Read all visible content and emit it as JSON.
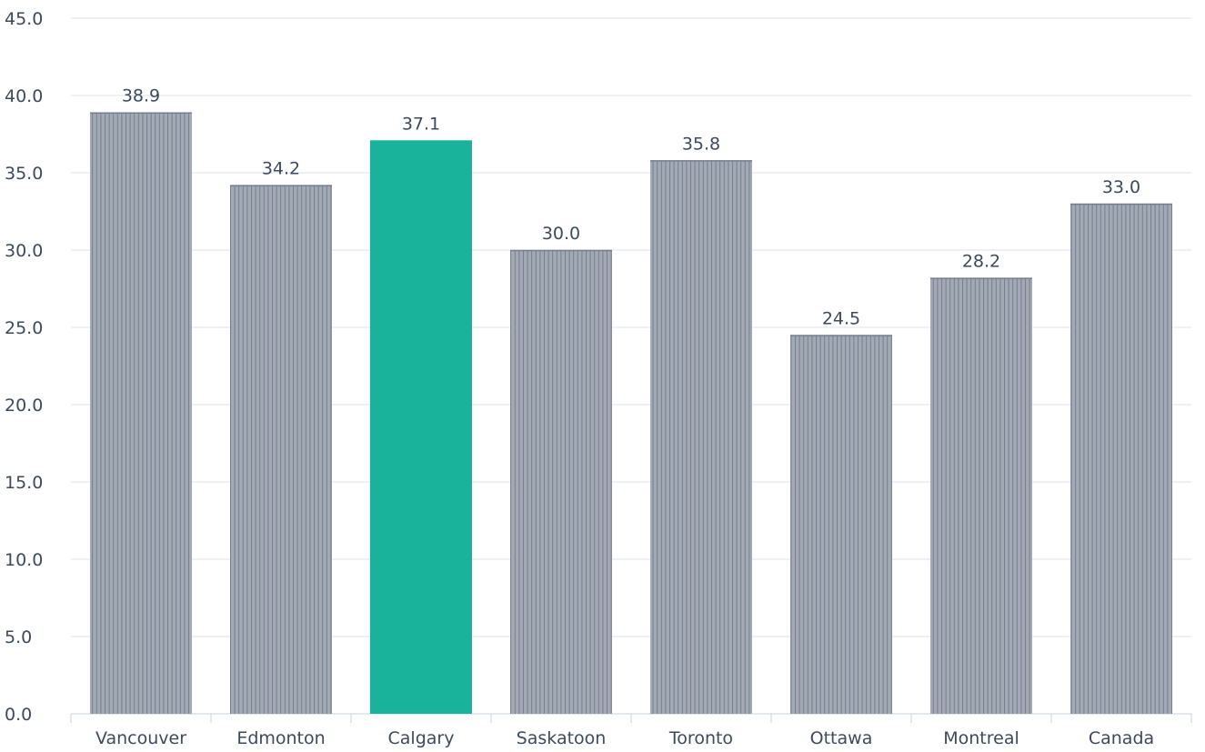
{
  "chart_data": {
    "type": "bar",
    "categories": [
      "Vancouver",
      "Edmonton",
      "Calgary",
      "Saskatoon",
      "Toronto",
      "Ottawa",
      "Montreal",
      "Canada"
    ],
    "values": [
      38.9,
      34.2,
      37.1,
      30.0,
      35.8,
      24.5,
      28.2,
      33.0
    ],
    "value_labels": [
      "38.9",
      "34.2",
      "37.1",
      "30.0",
      "35.8",
      "24.5",
      "28.2",
      "33.0"
    ],
    "highlight_category": "Calgary",
    "ylim": [
      0,
      45
    ],
    "yticks": [
      "0.0",
      "5.0",
      "10.0",
      "15.0",
      "20.0",
      "25.0",
      "30.0",
      "35.0",
      "40.0",
      "45.0"
    ],
    "ytick_values": [
      0,
      5,
      10,
      15,
      20,
      25,
      30,
      35,
      40,
      45
    ],
    "grid": true,
    "legend": "none",
    "colors": {
      "bar": "#a3aab5",
      "bar_stripe": "#737d8c",
      "highlight": "#19b39b",
      "grid": "#dde2e8",
      "axis": "#c8cfd8",
      "text": "#3d4a5c"
    }
  }
}
